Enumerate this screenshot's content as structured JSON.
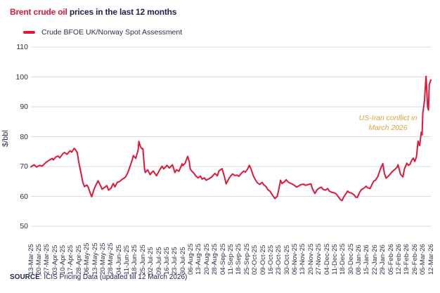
{
  "header": {
    "title_highlight": "Brent crude oil",
    "title_rest": " prices in the last 12 months"
  },
  "legend": {
    "label": "Crude BFOE UK/Norway Spot Assessment"
  },
  "annotation": {
    "line1": "US-Iran conflict in",
    "line2": "March 2026"
  },
  "source": {
    "label": "SOURCE",
    "text": ": ICIS Pricing Data (updated till 12 March 2026)"
  },
  "colors": {
    "accent_red": "#e0173a",
    "navy": "#20234f",
    "gridline": "#dbdbdb",
    "annotation_amber": "#e2a13c"
  },
  "chart_data": {
    "type": "line",
    "title": "Brent crude oil prices in the last 12 months",
    "xlabel": "",
    "ylabel": "$/bbl",
    "ylim": [
      50,
      110
    ],
    "yticks": [
      50,
      60,
      70,
      80,
      90,
      100,
      110
    ],
    "grid": "horizontal",
    "legend_position": "top-left",
    "x_tick_labels": [
      "13-Mar-25",
      "20-Mar-25",
      "27-Mar-25",
      "03-Apr-25",
      "10-Apr-25",
      "17-Apr-25",
      "28-Apr-25",
      "06-May-25",
      "13-May-25",
      "20-May-25",
      "28-May-25",
      "04-Jun-25",
      "11-Jun-25",
      "18-Jun-25",
      "25-Jun-25",
      "02-Jul-25",
      "09-Jul-25",
      "16-Jul-25",
      "23-Jul-25",
      "30-Jul-25",
      "06-Aug-25",
      "13-Aug-25",
      "20-Aug-25",
      "28-Aug-25",
      "04-Sep-25",
      "11-Sep-25",
      "18-Sep-25",
      "25-Sep-25",
      "02-Oct-25",
      "09-Oct-25",
      "16-Oct-25",
      "23-Oct-25",
      "30-Oct-25",
      "06-Nov-25",
      "13-Nov-25",
      "20-Nov-25",
      "27-Nov-25",
      "04-Dec-25",
      "11-Dec-25",
      "18-Dec-25",
      "30-Dec-25",
      "08-Jan-26",
      "15-Jan-26",
      "22-Jan-26",
      "29-Jan-26",
      "05-Feb-26",
      "12-Feb-26",
      "19-Feb-26",
      "26-Feb-26",
      "05-Mar-26",
      "12-Mar-26"
    ],
    "annotation": {
      "text_lines": [
        "US-Iran conflict in",
        "March 2026"
      ],
      "color": "#e2a13c"
    },
    "series": [
      {
        "name": "Crude BFOE UK/Norway Spot Assessment",
        "color": "#e0173a",
        "unit": "$/bbl",
        "points_format": "[week_index_0_to_50, price_usd_per_bbl]",
        "points": [
          [
            0,
            69.9
          ],
          [
            0.4,
            70.6
          ],
          [
            0.7,
            69.8
          ],
          [
            1.1,
            70.4
          ],
          [
            1.4,
            70.1
          ],
          [
            1.8,
            71.2
          ],
          [
            2.1,
            71.8
          ],
          [
            2.4,
            72.3
          ],
          [
            2.7,
            72.7
          ],
          [
            2.8,
            72.2
          ],
          [
            3.1,
            73.2
          ],
          [
            3.4,
            73.5
          ],
          [
            3.6,
            72.9
          ],
          [
            4.0,
            74.3
          ],
          [
            4.2,
            74.7
          ],
          [
            4.5,
            74.1
          ],
          [
            4.9,
            75.3
          ],
          [
            5.1,
            74.8
          ],
          [
            5.4,
            76.1
          ],
          [
            5.6,
            75.5
          ],
          [
            5.8,
            74.6
          ],
          [
            6.0,
            71.2
          ],
          [
            6.3,
            67.3
          ],
          [
            6.5,
            64.6
          ],
          [
            6.7,
            63.3
          ],
          [
            7.0,
            63.8
          ],
          [
            7.2,
            62.9
          ],
          [
            7.4,
            61.2
          ],
          [
            7.6,
            59.9
          ],
          [
            7.9,
            62.4
          ],
          [
            8.1,
            63.7
          ],
          [
            8.4,
            65.2
          ],
          [
            8.7,
            63.6
          ],
          [
            8.9,
            62.4
          ],
          [
            9.2,
            63.0
          ],
          [
            9.5,
            63.6
          ],
          [
            9.7,
            62.1
          ],
          [
            10.0,
            62.7
          ],
          [
            10.3,
            64.3
          ],
          [
            10.5,
            63.2
          ],
          [
            10.8,
            64.7
          ],
          [
            11.1,
            65.0
          ],
          [
            11.4,
            65.7
          ],
          [
            11.8,
            66.4
          ],
          [
            12.1,
            67.8
          ],
          [
            12.4,
            70.1
          ],
          [
            12.7,
            72.5
          ],
          [
            12.8,
            73.7
          ],
          [
            13.1,
            72.7
          ],
          [
            13.4,
            75.5
          ],
          [
            13.5,
            78.4
          ],
          [
            13.7,
            76.6
          ],
          [
            13.9,
            75.9
          ],
          [
            14.0,
            76.0
          ],
          [
            14.2,
            69.3
          ],
          [
            14.3,
            68.0
          ],
          [
            14.6,
            68.9
          ],
          [
            14.9,
            67.3
          ],
          [
            15.1,
            68.0
          ],
          [
            15.3,
            68.5
          ],
          [
            15.7,
            66.9
          ],
          [
            16.1,
            68.9
          ],
          [
            16.4,
            70.1
          ],
          [
            16.6,
            69.2
          ],
          [
            17.0,
            70.4
          ],
          [
            17.3,
            69.5
          ],
          [
            17.7,
            70.6
          ],
          [
            18.0,
            68.0
          ],
          [
            18.2,
            68.9
          ],
          [
            18.5,
            68.4
          ],
          [
            18.9,
            70.9
          ],
          [
            19.0,
            70.3
          ],
          [
            19.3,
            71.2
          ],
          [
            19.6,
            73.4
          ],
          [
            19.8,
            71.6
          ],
          [
            19.9,
            69.3
          ],
          [
            20.1,
            68.5
          ],
          [
            20.4,
            67.7
          ],
          [
            20.6,
            66.9
          ],
          [
            20.9,
            66.2
          ],
          [
            21.2,
            66.8
          ],
          [
            21.4,
            65.8
          ],
          [
            21.7,
            66.2
          ],
          [
            21.9,
            65.4
          ],
          [
            22.2,
            65.8
          ],
          [
            22.6,
            66.5
          ],
          [
            22.8,
            67.1
          ],
          [
            23.0,
            67.7
          ],
          [
            23.3,
            66.9
          ],
          [
            23.5,
            68.5
          ],
          [
            23.9,
            69.3
          ],
          [
            24.2,
            66.5
          ],
          [
            24.4,
            64.2
          ],
          [
            24.8,
            66.2
          ],
          [
            25.0,
            66.9
          ],
          [
            25.2,
            67.5
          ],
          [
            25.5,
            67.0
          ],
          [
            25.8,
            67.1
          ],
          [
            26.0,
            66.7
          ],
          [
            26.3,
            67.7
          ],
          [
            26.6,
            68.5
          ],
          [
            26.8,
            68.1
          ],
          [
            27.1,
            69.2
          ],
          [
            27.3,
            70.4
          ],
          [
            27.5,
            69.3
          ],
          [
            27.8,
            66.9
          ],
          [
            28.1,
            65.4
          ],
          [
            28.3,
            64.6
          ],
          [
            28.6,
            64.0
          ],
          [
            28.9,
            64.7
          ],
          [
            29.1,
            63.9
          ],
          [
            29.4,
            63.3
          ],
          [
            29.6,
            62.3
          ],
          [
            29.9,
            61.7
          ],
          [
            30.2,
            60.4
          ],
          [
            30.5,
            59.3
          ],
          [
            30.8,
            60.0
          ],
          [
            31.0,
            62.5
          ],
          [
            31.2,
            65.4
          ],
          [
            31.4,
            64.3
          ],
          [
            31.7,
            64.9
          ],
          [
            31.9,
            65.6
          ],
          [
            32.2,
            64.7
          ],
          [
            32.3,
            64.6
          ],
          [
            32.7,
            64.1
          ],
          [
            33.0,
            63.6
          ],
          [
            33.2,
            63.1
          ],
          [
            33.5,
            63.5
          ],
          [
            33.7,
            63.9
          ],
          [
            34.1,
            64.1
          ],
          [
            34.3,
            63.7
          ],
          [
            34.6,
            63.9
          ],
          [
            35.0,
            64.2
          ],
          [
            35.2,
            62.5
          ],
          [
            35.5,
            61.0
          ],
          [
            35.8,
            62.3
          ],
          [
            36.0,
            62.7
          ],
          [
            36.3,
            63.1
          ],
          [
            36.5,
            62.4
          ],
          [
            36.8,
            62.1
          ],
          [
            37.1,
            62.6
          ],
          [
            37.3,
            61.8
          ],
          [
            37.6,
            61.4
          ],
          [
            37.9,
            61.2
          ],
          [
            38.1,
            61.0
          ],
          [
            38.4,
            60.0
          ],
          [
            38.7,
            58.9
          ],
          [
            38.9,
            58.6
          ],
          [
            39.1,
            59.8
          ],
          [
            39.4,
            61.0
          ],
          [
            39.6,
            61.8
          ],
          [
            39.8,
            61.3
          ],
          [
            40.1,
            61.1
          ],
          [
            40.4,
            60.5
          ],
          [
            40.6,
            59.8
          ],
          [
            40.8,
            59.6
          ],
          [
            41.1,
            61.4
          ],
          [
            41.3,
            62.2
          ],
          [
            41.6,
            62.7
          ],
          [
            41.9,
            63.4
          ],
          [
            42.1,
            62.9
          ],
          [
            42.4,
            62.6
          ],
          [
            42.7,
            64.3
          ],
          [
            42.9,
            65.2
          ],
          [
            43.1,
            65.5
          ],
          [
            43.4,
            66.8
          ],
          [
            43.6,
            68.5
          ],
          [
            43.8,
            69.8
          ],
          [
            44.0,
            71.0
          ],
          [
            44.2,
            67.6
          ],
          [
            44.4,
            66.1
          ],
          [
            44.7,
            66.8
          ],
          [
            44.9,
            67.4
          ],
          [
            45.1,
            68.1
          ],
          [
            45.3,
            68.6
          ],
          [
            45.6,
            69.3
          ],
          [
            45.8,
            69.9
          ],
          [
            45.9,
            70.6
          ],
          [
            46.2,
            67.4
          ],
          [
            46.5,
            66.5
          ],
          [
            46.7,
            69.2
          ],
          [
            47.0,
            71.1
          ],
          [
            47.2,
            70.4
          ],
          [
            47.4,
            70.8
          ],
          [
            47.6,
            72.1
          ],
          [
            47.8,
            72.8
          ],
          [
            48.0,
            71.7
          ],
          [
            48.2,
            73.2
          ],
          [
            48.4,
            78.5
          ],
          [
            48.6,
            77.0
          ],
          [
            48.8,
            81.5
          ],
          [
            48.9,
            80.6
          ],
          [
            49.0,
            88.0
          ],
          [
            49.2,
            92.0
          ],
          [
            49.4,
            100.2
          ],
          [
            49.6,
            89.8
          ],
          [
            49.7,
            88.9
          ],
          [
            49.8,
            97.5
          ],
          [
            50.0,
            99.0
          ]
        ]
      }
    ]
  }
}
